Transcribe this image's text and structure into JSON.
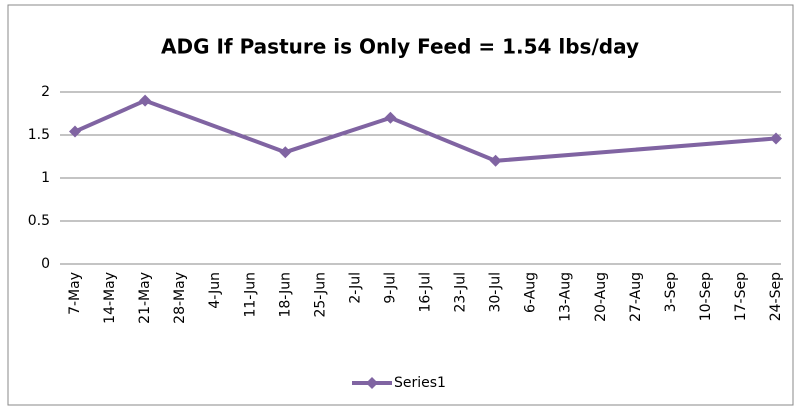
{
  "chart_data": {
    "type": "line",
    "title": "ADG If Pasture is Only Feed = 1.54 lbs/day",
    "xticks": [
      "7-May",
      "14-May",
      "21-May",
      "28-May",
      "4-Jun",
      "11-Jun",
      "18-Jun",
      "25-Jun",
      "2-Jul",
      "9-Jul",
      "16-Jul",
      "23-Jul",
      "30-Jul",
      "6-Aug",
      "13-Aug",
      "20-Aug",
      "27-Aug",
      "3-Sep",
      "10-Sep",
      "17-Sep",
      "24-Sep"
    ],
    "x": [
      "7-May",
      "21-May",
      "18-Jun",
      "9-Jul",
      "30-Jul",
      "24-Sep"
    ],
    "series": [
      {
        "name": "Series1",
        "color": "#8064a2",
        "values": [
          1.54,
          1.9,
          1.3,
          1.7,
          1.2,
          1.46
        ]
      }
    ],
    "ylim": [
      0,
      2
    ],
    "yticks": [
      0,
      0.5,
      1,
      1.5,
      2
    ],
    "grid": true,
    "legend": "bottom"
  }
}
